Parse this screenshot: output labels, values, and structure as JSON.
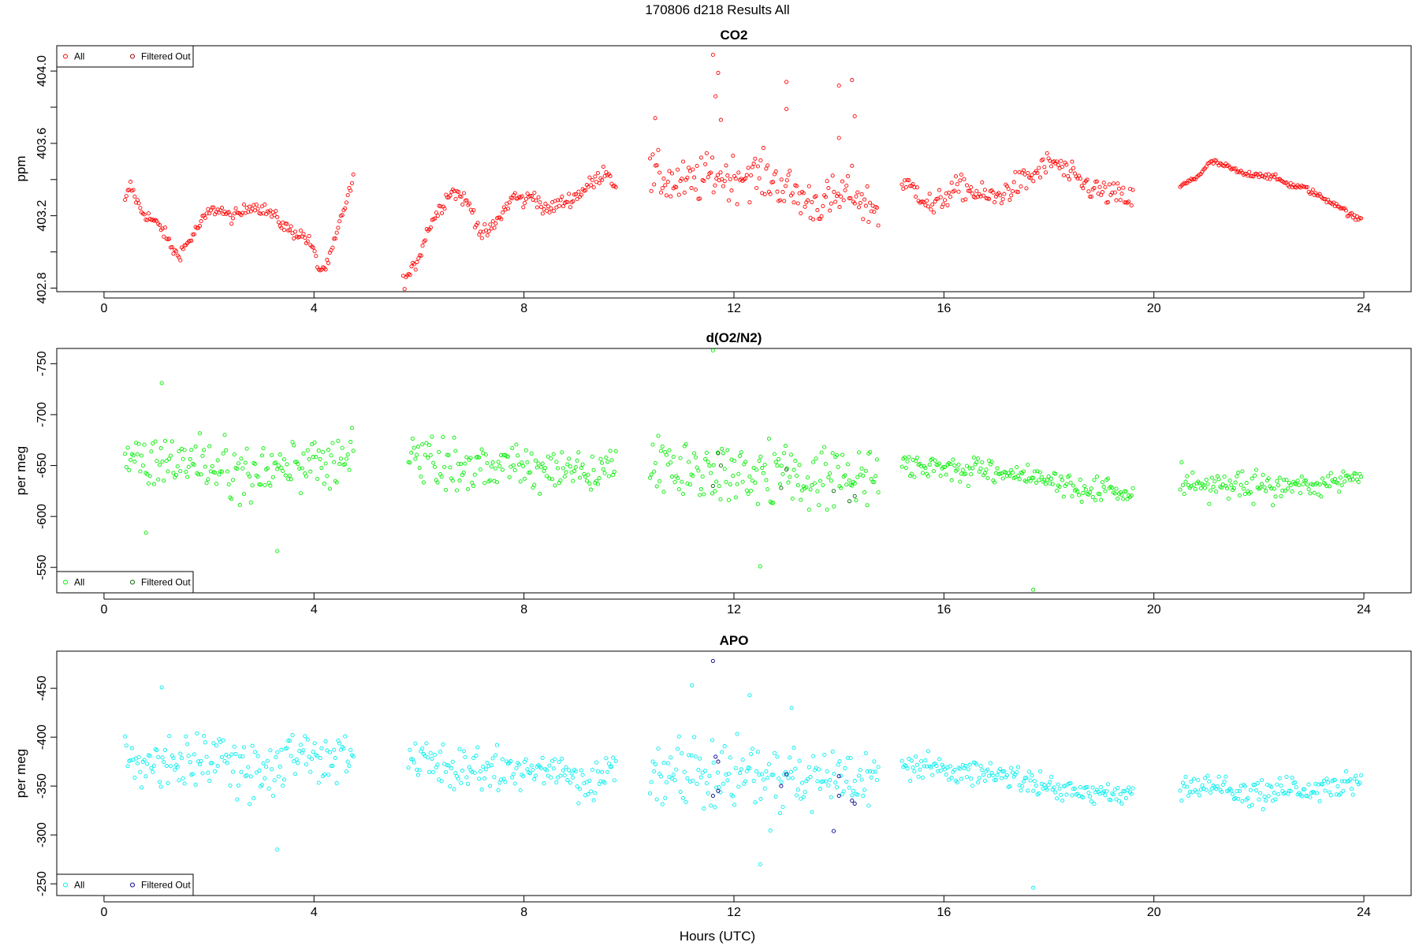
{
  "figure_title": "170806   d218   Results All",
  "x_axis_label": "Hours (UTC)",
  "legend": {
    "all_label": "All",
    "filtered_label": "Filtered Out"
  },
  "colors": {
    "co2_all": "#ff0000",
    "co2_filtered": "#8b0000",
    "o2_all": "#00ee00",
    "o2_filtered": "#006400",
    "apo_all": "#00eeee",
    "apo_filtered": "#00008b"
  },
  "chart_data": [
    {
      "type": "scatter",
      "title": "CO2",
      "ylabel": "ppm",
      "xlabel": "Hours (UTC)",
      "xlim": [
        -0.9,
        24.9
      ],
      "ylim": [
        402.78,
        404.14
      ],
      "y_reversed": false,
      "x_ticks": [
        0,
        4,
        8,
        12,
        16,
        20,
        24
      ],
      "y_ticks": [
        402.8,
        403.0,
        403.2,
        403.4,
        403.6,
        403.8,
        404.0
      ],
      "y_tick_labels": [
        "402.8",
        "",
        "403.2",
        "",
        "403.6",
        "",
        "404.0"
      ],
      "legend_position": "top-left",
      "series": [
        {
          "name": "All",
          "kind": "all",
          "segments": [
            {
              "x": [
                0.4,
                0.5,
                0.7,
                0.9,
                1.1,
                1.3,
                1.4,
                1.6,
                1.8,
                2.0,
                2.2,
                2.4,
                2.6,
                2.8,
                3.0,
                3.2,
                3.4,
                3.6,
                3.8,
                3.95,
                4.1,
                4.25,
                4.4,
                4.55,
                4.75
              ],
              "y": [
                403.27,
                403.37,
                403.23,
                403.18,
                403.13,
                403.02,
                402.98,
                403.05,
                403.14,
                403.22,
                403.24,
                403.19,
                403.21,
                403.26,
                403.24,
                403.21,
                403.15,
                403.11,
                403.09,
                403.04,
                402.9,
                402.92,
                403.06,
                403.22,
                403.4
              ],
              "noise": 0.025
            },
            {
              "x": [
                5.7,
                5.85,
                6.0,
                6.2,
                6.4,
                6.6,
                6.8,
                7.0,
                7.2,
                7.4,
                7.6,
                7.8,
                8.0,
                8.2,
                8.4,
                8.6,
                8.8,
                9.0,
                9.2,
                9.4,
                9.55,
                9.75
              ],
              "y": [
                402.84,
                402.88,
                402.98,
                403.15,
                403.24,
                403.34,
                403.31,
                403.24,
                403.09,
                403.13,
                403.22,
                403.31,
                403.28,
                403.32,
                403.22,
                403.26,
                403.28,
                403.31,
                403.36,
                403.4,
                403.46,
                403.37
              ],
              "noise": 0.03
            },
            {
              "x": [
                10.4,
                10.7,
                11.0,
                11.3,
                11.6,
                11.9,
                12.2,
                12.5,
                12.8,
                13.1,
                13.4,
                13.7,
                14.0,
                14.3,
                14.5,
                14.75
              ],
              "y": [
                403.42,
                403.4,
                403.37,
                403.39,
                403.43,
                403.41,
                403.43,
                403.42,
                403.39,
                403.33,
                403.28,
                403.27,
                403.3,
                403.34,
                403.26,
                403.24
              ],
              "noise": 0.09
            },
            {
              "x": [
                15.2,
                15.5,
                15.8,
                16.1,
                16.4,
                16.7,
                17.0,
                17.3,
                17.6,
                17.9,
                18.1,
                18.4,
                18.7,
                19.0,
                19.3,
                19.6
              ],
              "y": [
                403.37,
                403.34,
                403.24,
                403.33,
                403.36,
                403.31,
                403.3,
                403.36,
                403.4,
                403.47,
                403.5,
                403.42,
                403.37,
                403.33,
                403.31,
                403.29
              ],
              "noise": 0.05
            },
            {
              "x": [
                20.5,
                20.8,
                21.1,
                21.4,
                21.7,
                22.0,
                22.3,
                22.6,
                22.9,
                23.2,
                23.5,
                23.8,
                23.95
              ],
              "y": [
                403.36,
                403.41,
                403.5,
                403.47,
                403.43,
                403.43,
                403.41,
                403.37,
                403.35,
                403.3,
                403.26,
                403.19,
                403.18
              ],
              "noise": 0.012
            }
          ],
          "outliers": [
            [
              11.6,
              404.09
            ],
            [
              11.7,
              403.99
            ],
            [
              11.65,
              403.86
            ],
            [
              11.75,
              403.73
            ],
            [
              13.0,
              403.94
            ],
            [
              13.0,
              403.79
            ],
            [
              14.0,
              403.92
            ],
            [
              14.25,
              403.95
            ],
            [
              14.3,
              403.75
            ],
            [
              10.5,
              403.74
            ],
            [
              14.0,
              403.63
            ]
          ]
        }
      ]
    },
    {
      "type": "scatter",
      "title": "d(O2/N2)",
      "ylabel": "per meg",
      "xlabel": "Hours (UTC)",
      "xlim": [
        -0.9,
        24.9
      ],
      "ylim": [
        -765,
        -525
      ],
      "y_reversed": true,
      "x_ticks": [
        0,
        4,
        8,
        12,
        16,
        20,
        24
      ],
      "y_ticks": [
        -550,
        -600,
        -650,
        -700,
        -750
      ],
      "y_tick_labels": [
        "-550",
        "-600",
        "-650",
        "-700",
        "-750"
      ],
      "legend_position": "bottom-left",
      "series": [
        {
          "name": "All",
          "kind": "all",
          "segments": [
            {
              "x": [
                0.4,
                1.2,
                2.0,
                2.8,
                3.6,
                4.4,
                4.75
              ],
              "y": [
                -650,
                -655,
                -652,
                -640,
                -655,
                -648,
                -665
              ],
              "noise": 20
            },
            {
              "x": [
                5.8,
                6.5,
                7.2,
                7.9,
                8.6,
                9.3,
                9.75
              ],
              "y": [
                -655,
                -650,
                -648,
                -650,
                -645,
                -638,
                -650
              ],
              "noise": 16
            },
            {
              "x": [
                10.4,
                11.2,
                12.0,
                12.8,
                13.6,
                14.3,
                14.75
              ],
              "y": [
                -650,
                -648,
                -640,
                -642,
                -640,
                -637,
                -640
              ],
              "noise": 25
            },
            {
              "x": [
                15.2,
                16.0,
                16.8,
                17.6,
                18.3,
                19.0,
                19.6
              ],
              "y": [
                -650,
                -648,
                -645,
                -640,
                -628,
                -625,
                -625
              ],
              "noise": 9
            },
            {
              "x": [
                20.5,
                21.2,
                21.9,
                22.6,
                23.3,
                23.95
              ],
              "y": [
                -635,
                -632,
                -628,
                -628,
                -635,
                -638
              ],
              "noise": 10
            }
          ],
          "outliers": [
            [
              17.7,
              -528
            ],
            [
              11.6,
              -763
            ],
            [
              12.5,
              -551
            ],
            [
              1.1,
              -731
            ],
            [
              3.3,
              -566
            ],
            [
              0.8,
              -584
            ]
          ]
        },
        {
          "name": "Filtered Out",
          "kind": "filtered",
          "points": [
            [
              11.6,
              -630
            ],
            [
              11.7,
              -662
            ],
            [
              11.75,
              -650
            ],
            [
              12.9,
              -628
            ],
            [
              13.0,
              -646
            ],
            [
              13.9,
              -625
            ],
            [
              14.2,
              -615
            ],
            [
              14.3,
              -620
            ]
          ]
        }
      ]
    },
    {
      "type": "scatter",
      "title": "APO",
      "ylabel": "per meg",
      "xlabel": "Hours (UTC)",
      "xlim": [
        -0.9,
        24.9
      ],
      "ylim": [
        -488,
        -238
      ],
      "y_reversed": true,
      "x_ticks": [
        0,
        4,
        8,
        12,
        16,
        20,
        24
      ],
      "y_ticks": [
        -250,
        -300,
        -350,
        -400,
        -450
      ],
      "y_tick_labels": [
        "-250",
        "-300",
        "-350",
        "-400",
        "-450"
      ],
      "legend_position": "bottom-left",
      "series": [
        {
          "name": "All",
          "kind": "all",
          "segments": [
            {
              "x": [
                0.4,
                1.2,
                2.0,
                2.8,
                3.6,
                4.4,
                4.75
              ],
              "y": [
                -370,
                -378,
                -372,
                -360,
                -378,
                -370,
                -395
              ],
              "noise": 20
            },
            {
              "x": [
                5.8,
                6.5,
                7.2,
                7.9,
                8.6,
                9.3,
                9.75
              ],
              "y": [
                -380,
                -370,
                -362,
                -368,
                -368,
                -355,
                -370
              ],
              "noise": 16
            },
            {
              "x": [
                10.4,
                11.2,
                12.0,
                12.8,
                13.6,
                14.3,
                14.75
              ],
              "y": [
                -365,
                -370,
                -358,
                -355,
                -365,
                -355,
                -360
              ],
              "noise": 26
            },
            {
              "x": [
                15.2,
                16.0,
                16.8,
                17.6,
                18.3,
                19.0,
                19.6
              ],
              "y": [
                -375,
                -365,
                -362,
                -355,
                -345,
                -343,
                -340
              ],
              "noise": 9
            },
            {
              "x": [
                20.5,
                21.2,
                21.9,
                22.6,
                23.3,
                23.95
              ],
              "y": [
                -352,
                -350,
                -340,
                -345,
                -350,
                -355
              ],
              "noise": 11
            }
          ],
          "outliers": [
            [
              17.7,
              -246
            ],
            [
              12.5,
              -270
            ],
            [
              3.3,
              -285
            ],
            [
              1.1,
              -451
            ],
            [
              11.2,
              -453
            ],
            [
              12.3,
              -443
            ],
            [
              13.1,
              -430
            ]
          ]
        },
        {
          "name": "Filtered Out",
          "kind": "filtered",
          "points": [
            [
              11.6,
              -478
            ],
            [
              11.6,
              -340
            ],
            [
              11.7,
              -345
            ],
            [
              11.65,
              -380
            ],
            [
              11.7,
              -375
            ],
            [
              12.9,
              -350
            ],
            [
              13.0,
              -362
            ],
            [
              13.9,
              -304
            ],
            [
              14.0,
              -340
            ],
            [
              14.0,
              -360
            ],
            [
              14.25,
              -335
            ],
            [
              14.3,
              -332
            ]
          ]
        }
      ]
    }
  ]
}
